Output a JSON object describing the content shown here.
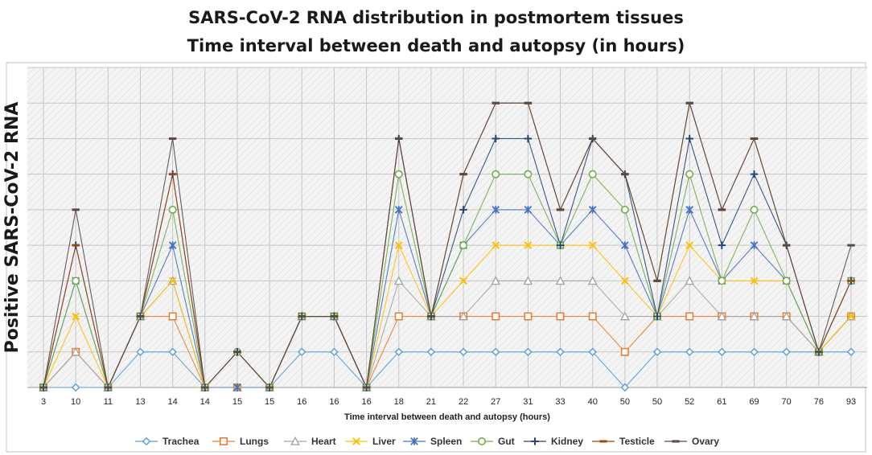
{
  "chart_data": {
    "type": "line",
    "title": "SARS-CoV-2 RNA distribution in postmortem tissues",
    "subtitle": "Time interval between death and autopsy (in hours)",
    "xlabel": "Time interval between death and autopsy (hours)",
    "ylabel": "Positive SARS-CoV-2 RNA",
    "ylim": [
      0,
      9
    ],
    "grid": true,
    "legend_position": "bottom",
    "categories": [
      "3",
      "10",
      "11",
      "13",
      "14",
      "14",
      "15",
      "15",
      "16",
      "16",
      "16",
      "18",
      "21",
      "22",
      "27",
      "31",
      "33",
      "40",
      "50",
      "50",
      "52",
      "61",
      "69",
      "70",
      "76",
      "93"
    ],
    "series": [
      {
        "name": "Trachea",
        "color": "#5b9bd5",
        "marker": "diamond",
        "values": [
          0,
          0,
          0,
          1,
          1,
          0,
          0,
          0,
          1,
          1,
          0,
          1,
          1,
          1,
          1,
          1,
          1,
          1,
          0,
          1,
          1,
          1,
          1,
          1,
          1,
          1
        ]
      },
      {
        "name": "Lungs",
        "color": "#ed7d31",
        "marker": "square",
        "values": [
          0,
          1,
          0,
          2,
          2,
          0,
          0,
          0,
          2,
          2,
          0,
          2,
          2,
          2,
          2,
          2,
          2,
          2,
          1,
          2,
          2,
          2,
          2,
          2,
          1,
          2
        ]
      },
      {
        "name": "Heart",
        "color": "#a5a5a5",
        "marker": "triangle",
        "values": [
          0,
          1,
          0,
          2,
          3,
          0,
          0,
          0,
          2,
          2,
          0,
          3,
          2,
          2,
          3,
          3,
          3,
          3,
          2,
          2,
          3,
          2,
          2,
          2,
          1,
          2
        ]
      },
      {
        "name": "Liver",
        "color": "#ffc000",
        "marker": "x",
        "values": [
          0,
          2,
          0,
          2,
          3,
          0,
          0,
          0,
          2,
          2,
          0,
          4,
          2,
          3,
          4,
          4,
          4,
          4,
          3,
          2,
          4,
          3,
          3,
          3,
          1,
          2
        ]
      },
      {
        "name": "Spleen",
        "color": "#4472c4",
        "marker": "star",
        "values": [
          0,
          3,
          0,
          2,
          4,
          0,
          0,
          0,
          2,
          2,
          0,
          5,
          2,
          4,
          5,
          5,
          4,
          5,
          4,
          2,
          5,
          3,
          4,
          3,
          1,
          3
        ]
      },
      {
        "name": "Gut",
        "color": "#70ad47",
        "marker": "circle",
        "values": [
          0,
          3,
          0,
          2,
          5,
          0,
          1,
          0,
          2,
          2,
          0,
          6,
          2,
          4,
          6,
          6,
          4,
          6,
          5,
          2,
          6,
          3,
          5,
          3,
          1,
          3
        ]
      },
      {
        "name": "Kidney",
        "color": "#264478",
        "marker": "plus",
        "values": [
          0,
          4,
          0,
          2,
          6,
          0,
          1,
          0,
          2,
          2,
          0,
          7,
          2,
          5,
          7,
          7,
          4,
          7,
          6,
          2,
          7,
          4,
          6,
          4,
          1,
          3
        ]
      },
      {
        "name": "Testicle",
        "color": "#9e480e",
        "marker": "dash",
        "values": [
          0,
          4,
          0,
          2,
          6,
          0,
          1,
          0,
          2,
          2,
          0,
          7,
          2,
          6,
          8,
          8,
          5,
          7,
          6,
          3,
          8,
          5,
          7,
          4,
          1,
          3
        ]
      },
      {
        "name": "Ovary",
        "color": "#5a4a42",
        "marker": "dash",
        "values": [
          0,
          5,
          0,
          2,
          7,
          0,
          1,
          0,
          2,
          2,
          0,
          7,
          2,
          6,
          8,
          8,
          5,
          7,
          6,
          3,
          8,
          5,
          7,
          4,
          1,
          4
        ]
      }
    ]
  }
}
